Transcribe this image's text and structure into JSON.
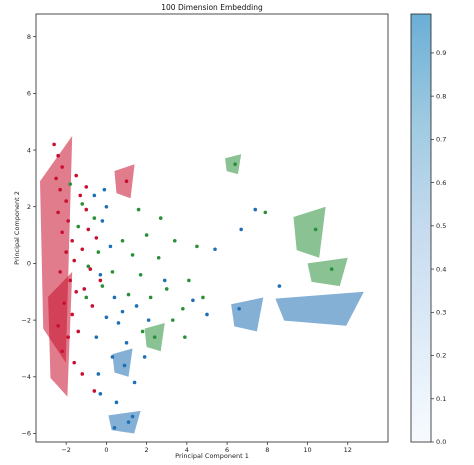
{
  "chart_data": {
    "type": "scatter",
    "title": "100 Dimension Embedding",
    "xlabel": "Principal Component 1",
    "ylabel": "Principal Component 2",
    "xlim": [
      -3.5,
      14.0
    ],
    "ylim": [
      -6.3,
      8.8
    ],
    "xticks": [
      "−2",
      "0",
      "2",
      "4",
      "6",
      "8",
      "10",
      "12"
    ],
    "xtick_values": [
      -2,
      0,
      2,
      4,
      6,
      8,
      10,
      12
    ],
    "yticks": [
      "−6",
      "−4",
      "−2",
      "0",
      "2",
      "4",
      "6",
      "8"
    ],
    "ytick_values": [
      -6,
      -4,
      -2,
      0,
      2,
      4,
      6,
      8
    ],
    "colorbar": {
      "ticks": [
        "0.0",
        "0.1",
        "0.2",
        "0.3",
        "0.4",
        "0.5",
        "0.6",
        "0.7",
        "0.8",
        "0.9"
      ],
      "tick_values": [
        0.0,
        0.1,
        0.2,
        0.3,
        0.4,
        0.5,
        0.6,
        0.7,
        0.8,
        0.9
      ],
      "range": [
        0.0,
        0.99
      ],
      "colormap": "Blues"
    },
    "series": [
      {
        "color": "#c8102e",
        "points": [
          [
            -2.6,
            4.2
          ],
          [
            -2.4,
            3.8
          ],
          [
            -2.2,
            3.4
          ],
          [
            -2.5,
            3.0
          ],
          [
            -2.3,
            2.6
          ],
          [
            -2.0,
            2.2
          ],
          [
            -2.4,
            1.8
          ],
          [
            -1.9,
            1.5
          ],
          [
            -2.2,
            1.1
          ],
          [
            -1.7,
            0.8
          ],
          [
            -2.0,
            0.4
          ],
          [
            -1.6,
            0.1
          ],
          [
            -2.3,
            -0.3
          ],
          [
            -1.8,
            -0.6
          ],
          [
            -1.5,
            -1.0
          ],
          [
            -2.1,
            -1.4
          ],
          [
            -1.7,
            -1.8
          ],
          [
            -2.4,
            -2.2
          ],
          [
            -1.9,
            -2.6
          ],
          [
            -2.2,
            -3.1
          ],
          [
            -1.6,
            -3.5
          ],
          [
            -1.2,
            -3.9
          ],
          [
            -0.6,
            -4.5
          ],
          [
            -1.0,
            1.9
          ],
          [
            -1.3,
            2.4
          ],
          [
            -0.9,
            1.2
          ],
          [
            -1.2,
            0.5
          ],
          [
            -0.8,
            -0.2
          ],
          [
            -1.1,
            -0.9
          ],
          [
            -0.7,
            -1.5
          ],
          [
            -1.4,
            -2.4
          ],
          [
            1.0,
            2.9
          ],
          [
            -1.5,
            3.1
          ],
          [
            -1.0,
            2.7
          ],
          [
            -0.5,
            0.9
          ],
          [
            -0.3,
            -0.6
          ]
        ]
      },
      {
        "color": "#2a8f3a",
        "points": [
          [
            -1.8,
            2.8
          ],
          [
            -1.2,
            2.1
          ],
          [
            -0.6,
            1.6
          ],
          [
            -1.4,
            1.3
          ],
          [
            -0.4,
            0.4
          ],
          [
            -0.9,
            -0.1
          ],
          [
            -0.2,
            -0.8
          ],
          [
            -1.0,
            -1.2
          ],
          [
            0.3,
            -0.3
          ],
          [
            0.8,
            0.8
          ],
          [
            1.3,
            0.3
          ],
          [
            1.7,
            -0.4
          ],
          [
            2.2,
            -1.2
          ],
          [
            2.6,
            0.2
          ],
          [
            3.0,
            -0.9
          ],
          [
            3.4,
            0.8
          ],
          [
            3.8,
            -1.6
          ],
          [
            1.6,
            1.9
          ],
          [
            2.0,
            1.0
          ],
          [
            1.1,
            -1.1
          ],
          [
            2.7,
            1.6
          ],
          [
            3.3,
            -2.0
          ],
          [
            4.5,
            0.6
          ],
          [
            4.8,
            -1.2
          ],
          [
            6.4,
            3.5
          ],
          [
            7.9,
            1.8
          ],
          [
            10.4,
            1.2
          ],
          [
            11.2,
            -0.2
          ],
          [
            2.4,
            -2.6
          ],
          [
            1.8,
            -2.4
          ],
          [
            4.1,
            -0.6
          ],
          [
            3.9,
            -2.6
          ]
        ]
      },
      {
        "color": "#1f6fb5",
        "points": [
          [
            -0.6,
            2.4
          ],
          [
            -0.2,
            1.5
          ],
          [
            0.2,
            0.6
          ],
          [
            -0.3,
            -0.4
          ],
          [
            0.4,
            -1.2
          ],
          [
            0.0,
            -1.9
          ],
          [
            -0.5,
            -2.6
          ],
          [
            0.6,
            -2.1
          ],
          [
            1.0,
            -2.8
          ],
          [
            0.3,
            -3.3
          ],
          [
            -0.4,
            -3.9
          ],
          [
            0.9,
            -3.6
          ],
          [
            1.4,
            -4.2
          ],
          [
            0.5,
            -4.9
          ],
          [
            1.1,
            -5.6
          ],
          [
            -0.3,
            -4.6
          ],
          [
            0.0,
            2.0
          ],
          [
            -0.1,
            2.6
          ],
          [
            1.5,
            -1.5
          ],
          [
            2.1,
            -2.0
          ],
          [
            1.9,
            -3.3
          ],
          [
            5.0,
            -1.8
          ],
          [
            5.4,
            0.5
          ],
          [
            6.7,
            1.2
          ],
          [
            7.4,
            1.9
          ],
          [
            8.6,
            -0.8
          ],
          [
            6.6,
            -1.6
          ],
          [
            4.3,
            -1.3
          ],
          [
            2.9,
            -0.6
          ],
          [
            0.8,
            -1.7
          ],
          [
            1.3,
            -5.4
          ],
          [
            0.4,
            -5.8
          ]
        ]
      }
    ],
    "wedges": [
      {
        "color": "#c8102e",
        "cx": -2.5,
        "cy": 0.5,
        "rx": 0.8,
        "ry": 4.0
      },
      {
        "color": "#c8102e",
        "cx": -2.3,
        "cy": -2.5,
        "rx": 0.6,
        "ry": 2.2
      },
      {
        "color": "#c8102e",
        "cx": 0.9,
        "cy": 2.9,
        "rx": 0.5,
        "ry": 0.6
      },
      {
        "color": "#2a8f3a",
        "cx": 6.3,
        "cy": 3.5,
        "rx": 0.4,
        "ry": 0.35
      },
      {
        "color": "#2a8f3a",
        "cx": 10.1,
        "cy": 1.1,
        "rx": 0.8,
        "ry": 0.9
      },
      {
        "color": "#2a8f3a",
        "cx": 11.0,
        "cy": -0.3,
        "rx": 1.0,
        "ry": 0.5
      },
      {
        "color": "#2a8f3a",
        "cx": 2.4,
        "cy": -2.6,
        "rx": 0.5,
        "ry": 0.5
      },
      {
        "color": "#1f6fb5",
        "cx": 10.6,
        "cy": -1.6,
        "rx": 2.2,
        "ry": 0.6
      },
      {
        "color": "#1f6fb5",
        "cx": 7.0,
        "cy": -1.8,
        "rx": 0.8,
        "ry": 0.6
      },
      {
        "color": "#1f6fb5",
        "cx": 0.9,
        "cy": -5.6,
        "rx": 0.8,
        "ry": 0.4
      },
      {
        "color": "#1f6fb5",
        "cx": 0.8,
        "cy": -3.5,
        "rx": 0.5,
        "ry": 0.5
      }
    ]
  }
}
